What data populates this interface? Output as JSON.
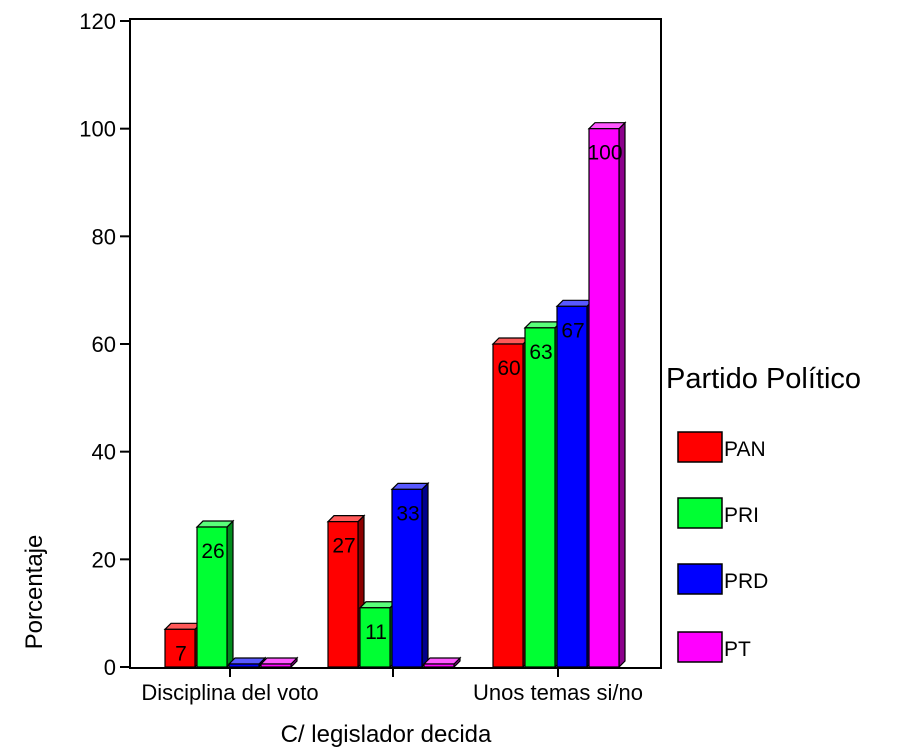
{
  "chart_data": {
    "type": "bar",
    "title": "",
    "xlabel": "C/ legislador decida",
    "ylabel": "Porcentaje",
    "ylim": [
      0,
      120
    ],
    "yticks": [
      0,
      20,
      40,
      60,
      80,
      100,
      120
    ],
    "categories": [
      "Disciplina del voto",
      "",
      "Unos temas si/no"
    ],
    "legend_title": "Partido Político",
    "legend_position": "right",
    "series": [
      {
        "name": "PAN",
        "color": "#ff0000",
        "values": [
          7,
          27,
          60
        ],
        "labels": [
          "7",
          "27",
          "60"
        ]
      },
      {
        "name": "PRI",
        "color": "#00ff33",
        "values": [
          26,
          11,
          63
        ],
        "labels": [
          "26",
          "11",
          "63"
        ]
      },
      {
        "name": "PRD",
        "color": "#0000ff",
        "values": [
          0,
          33,
          67
        ],
        "labels": [
          "",
          "33",
          "67"
        ]
      },
      {
        "name": "PT",
        "color": "#ff00ff",
        "values": [
          0,
          0,
          100
        ],
        "labels": [
          "",
          "",
          "100"
        ]
      }
    ]
  }
}
